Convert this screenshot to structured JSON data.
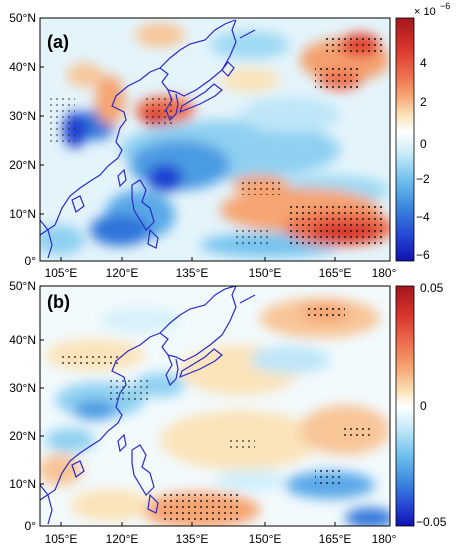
{
  "panels": [
    {
      "id": "a",
      "label": "(a)",
      "colorbar": {
        "scale_label": "× 10",
        "exponent": "−6",
        "ticks": [
          "4",
          "2",
          "0",
          "−2",
          "−4",
          "−6"
        ],
        "colors": [
          "#b51c26",
          "#dd3b30",
          "#ef6b4e",
          "#f59b6d",
          "#f8c597",
          "#fbe7c2",
          "#ffffff",
          "#cfeefa",
          "#8fd3f2",
          "#4fa9e6",
          "#2f74d9",
          "#1f3fd0",
          "#1414b8"
        ]
      },
      "y_ticks": [
        "50°N",
        "40°N",
        "30°N",
        "20°N",
        "10°N",
        "0°"
      ],
      "x_ticks": [
        "105°E",
        "120°E",
        "135°E",
        "150°E",
        "165°E",
        "180°"
      ]
    },
    {
      "id": "b",
      "label": "(b)",
      "colorbar": {
        "ticks": [
          "0.05",
          "0",
          "−0.05"
        ],
        "colors": [
          "#b51c26",
          "#dd3b30",
          "#ef6b4e",
          "#f59b6d",
          "#f8c597",
          "#fbe7c2",
          "#ffffff",
          "#cfeefa",
          "#8fd3f2",
          "#4fa9e6",
          "#2f74d9",
          "#1f3fd0",
          "#1414b8"
        ]
      },
      "y_ticks": [
        "50°N",
        "40°N",
        "30°N",
        "20°N",
        "10°N",
        "0°"
      ],
      "x_ticks": [
        "105°E",
        "120°E",
        "135°E",
        "150°E",
        "165°E",
        "180°"
      ]
    }
  ],
  "coast_color": "#2a2ac8"
}
